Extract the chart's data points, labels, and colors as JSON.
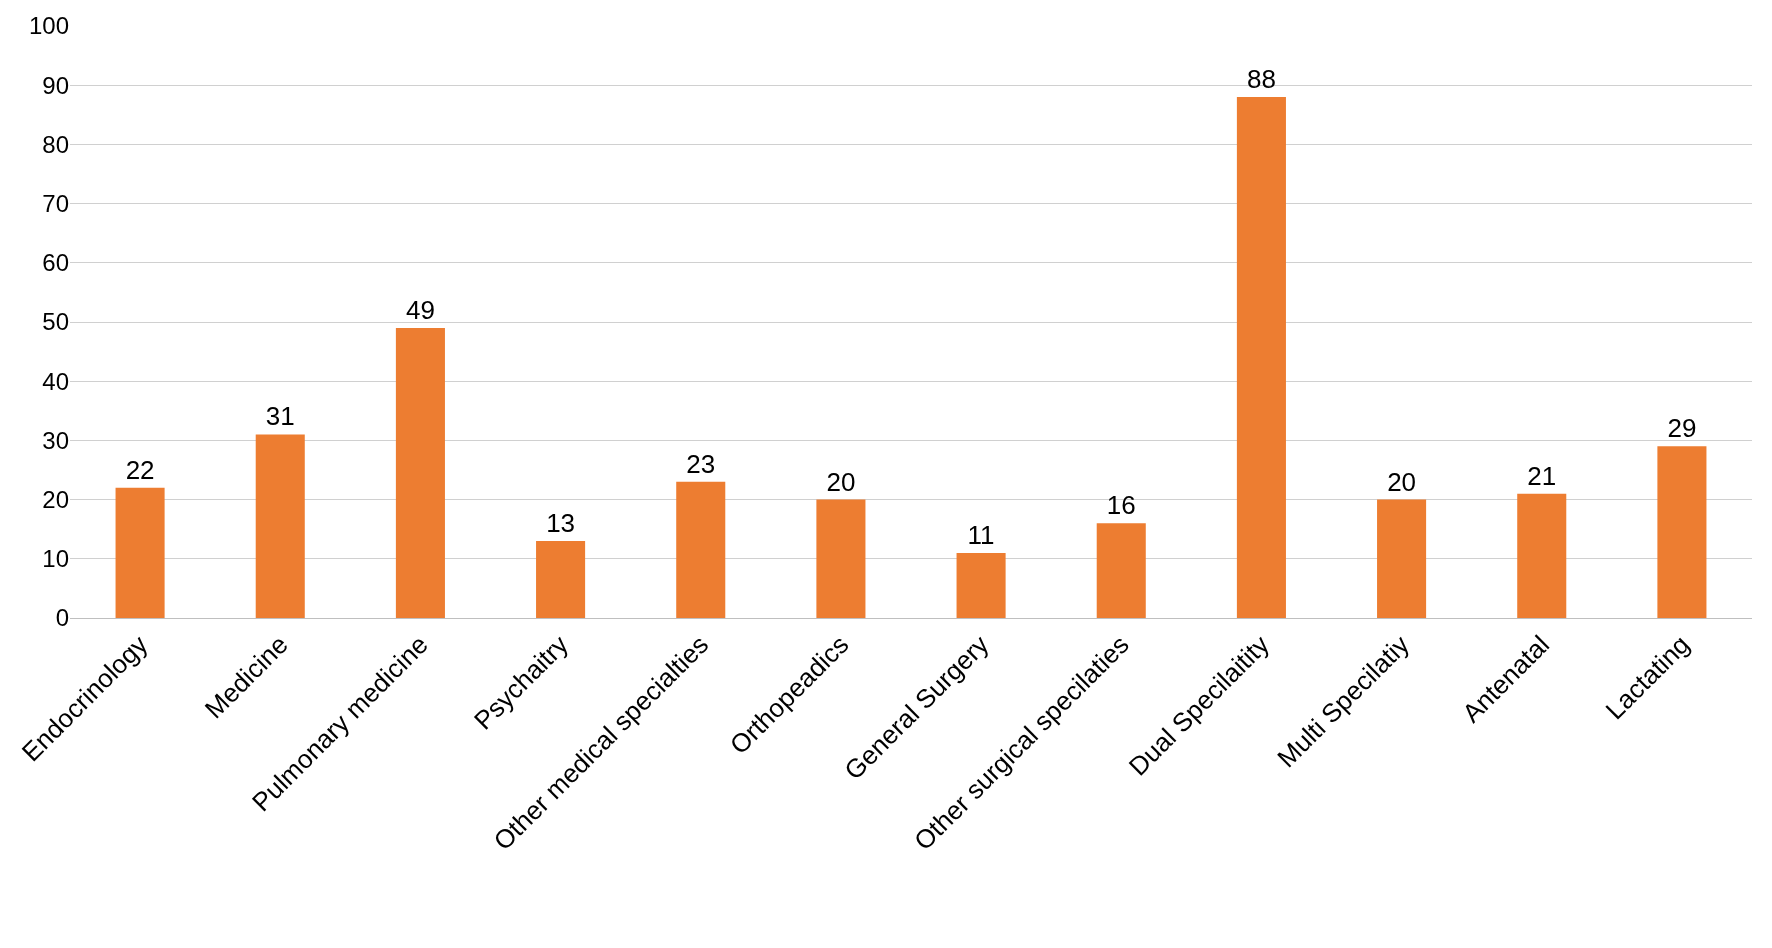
{
  "chart_data": {
    "type": "bar",
    "categories": [
      "Endocrinology",
      "Medicine",
      "Pulmonary medicine",
      "Psychaitry",
      "Other medical specialties",
      "Orthopeadics",
      "General Surgery",
      "Other surgical specilaties",
      "Dual Specilaitity",
      "Multi Specilatiy",
      "Antenatal",
      "Lactating"
    ],
    "values": [
      22,
      31,
      49,
      13,
      23,
      20,
      11,
      16,
      88,
      20,
      21,
      29
    ],
    "color": "#ed7d31",
    "ylim": [
      0,
      100
    ],
    "yticks": [
      0,
      10,
      20,
      30,
      40,
      50,
      60,
      70,
      80,
      90,
      100
    ],
    "grid": "y",
    "data_labels": true
  }
}
